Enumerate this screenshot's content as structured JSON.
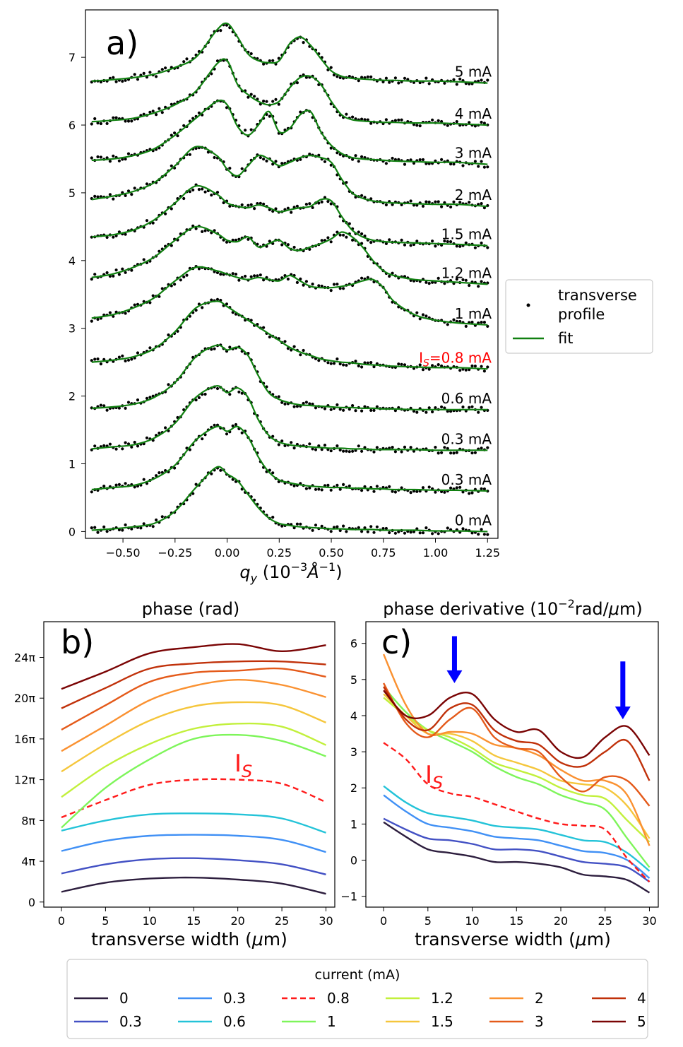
{
  "chart_data": [
    {
      "panel": "a)",
      "type": "line",
      "xlabel": "q_y (10^-3 Å^-1)",
      "xlim": [
        -0.68,
        1.3
      ],
      "ylim": [
        -0.1,
        7.7
      ],
      "xticks": [
        -0.5,
        -0.25,
        0.0,
        0.25,
        0.5,
        0.75,
        1.0,
        1.25
      ],
      "xtick_labels": [
        "−0.50",
        "−0.25",
        "0.00",
        "0.25",
        "0.50",
        "0.75",
        "1.00",
        "1.25"
      ],
      "yticks": [
        0,
        1,
        2,
        3,
        4,
        5,
        6,
        7
      ],
      "legend": [
        "transverse profile",
        "fit"
      ],
      "legend_position": "right",
      "marker_color": "#000000",
      "fit_color": "#118011",
      "highlight_color": "#ff0000",
      "curve_labels": [
        "0 mA",
        "0.3 mA",
        "0.3 mA",
        "0.6 mA",
        "I_S=0.8 mA",
        "1 mA",
        "1.2 mA",
        "1.5 mA",
        "2 mA",
        "3 mA",
        "4 mA",
        "5 mA"
      ],
      "highlight_index": 4,
      "x": [
        -0.65,
        -0.55,
        -0.45,
        -0.35,
        -0.25,
        -0.15,
        -0.05,
        0.0,
        0.05,
        0.1,
        0.15,
        0.2,
        0.25,
        0.3,
        0.35,
        0.4,
        0.45,
        0.5,
        0.55,
        0.6,
        0.65,
        0.7,
        0.75,
        0.8,
        0.9,
        1.0,
        1.1,
        1.25
      ],
      "series": [
        {
          "name": "0 mA",
          "values": [
            0.02,
            0.04,
            0.07,
            0.12,
            0.3,
            0.65,
            0.95,
            0.85,
            0.75,
            0.55,
            0.35,
            0.2,
            0.12,
            0.09,
            0.07,
            0.06,
            0.05,
            0.04,
            0.04,
            0.03,
            0.03,
            0.03,
            0.02,
            0.02,
            0.02,
            0.01,
            0.01,
            0.0
          ]
        },
        {
          "name": "0.3 mA",
          "values": [
            0.62,
            0.65,
            0.68,
            0.78,
            0.98,
            1.35,
            1.55,
            1.48,
            1.55,
            1.4,
            1.1,
            0.88,
            0.76,
            0.72,
            0.69,
            0.67,
            0.66,
            0.65,
            0.65,
            0.64,
            0.64,
            0.63,
            0.63,
            0.62,
            0.62,
            0.61,
            0.61,
            0.6
          ]
        },
        {
          "name": "0.3 mA",
          "values": [
            1.22,
            1.25,
            1.28,
            1.38,
            1.6,
            1.98,
            2.15,
            2.05,
            2.12,
            1.98,
            1.65,
            1.42,
            1.32,
            1.28,
            1.26,
            1.25,
            1.24,
            1.23,
            1.23,
            1.22,
            1.22,
            1.21,
            1.21,
            1.21,
            1.21,
            1.2,
            1.2,
            1.2
          ]
        },
        {
          "name": "0.6 mA",
          "values": [
            1.82,
            1.84,
            1.88,
            1.98,
            2.2,
            2.58,
            2.75,
            2.68,
            2.72,
            2.6,
            2.3,
            2.05,
            1.95,
            1.9,
            1.87,
            1.86,
            1.85,
            1.84,
            1.83,
            1.83,
            1.82,
            1.82,
            1.81,
            1.81,
            1.8,
            1.8,
            1.8,
            1.8
          ]
        },
        {
          "name": "I_S=0.8 mA",
          "values": [
            2.5,
            2.53,
            2.58,
            2.7,
            2.95,
            3.3,
            3.4,
            3.32,
            3.22,
            3.12,
            3.02,
            2.92,
            2.82,
            2.72,
            2.65,
            2.6,
            2.55,
            2.52,
            2.5,
            2.49,
            2.47,
            2.46,
            2.45,
            2.44,
            2.43,
            2.42,
            2.42,
            2.4
          ]
        },
        {
          "name": "1 mA",
          "values": [
            3.15,
            3.2,
            3.3,
            3.45,
            3.7,
            3.9,
            3.85,
            3.8,
            3.75,
            3.72,
            3.75,
            3.72,
            3.7,
            3.78,
            3.7,
            3.62,
            3.6,
            3.6,
            3.62,
            3.65,
            3.7,
            3.72,
            3.6,
            3.4,
            3.2,
            3.12,
            3.08,
            3.05
          ]
        },
        {
          "name": "1.2 mA",
          "values": [
            3.75,
            3.8,
            3.9,
            4.05,
            4.3,
            4.5,
            4.4,
            4.3,
            4.28,
            4.35,
            4.2,
            4.25,
            4.3,
            4.18,
            4.15,
            4.2,
            4.25,
            4.32,
            4.42,
            4.35,
            4.2,
            4.0,
            3.85,
            3.78,
            3.72,
            3.7,
            3.68,
            3.65
          ]
        },
        {
          "name": "1.5 mA",
          "values": [
            4.35,
            4.38,
            4.45,
            4.6,
            4.85,
            5.1,
            4.98,
            4.85,
            4.8,
            4.78,
            4.82,
            4.78,
            4.72,
            4.75,
            4.78,
            4.8,
            4.9,
            4.88,
            4.65,
            4.45,
            4.35,
            4.3,
            4.28,
            4.27,
            4.26,
            4.25,
            4.24,
            4.22
          ]
        },
        {
          "name": "2 mA",
          "values": [
            4.9,
            4.95,
            5.02,
            5.15,
            5.4,
            5.68,
            5.55,
            5.35,
            5.25,
            5.4,
            5.55,
            5.5,
            5.4,
            5.45,
            5.52,
            5.55,
            5.52,
            5.45,
            5.2,
            5.0,
            4.92,
            4.88,
            4.86,
            4.85,
            4.84,
            4.83,
            4.83,
            4.8
          ]
        },
        {
          "name": "3 mA",
          "values": [
            5.48,
            5.5,
            5.55,
            5.65,
            5.85,
            6.1,
            6.35,
            6.3,
            5.98,
            5.85,
            6.0,
            6.2,
            5.9,
            5.95,
            6.15,
            6.2,
            5.9,
            5.7,
            5.58,
            5.52,
            5.5,
            5.49,
            5.48,
            5.47,
            5.46,
            5.45,
            5.45,
            5.42
          ]
        },
        {
          "name": "4 mA",
          "values": [
            6.05,
            6.07,
            6.1,
            6.18,
            6.3,
            6.5,
            6.9,
            6.95,
            6.6,
            6.45,
            6.35,
            6.3,
            6.35,
            6.55,
            6.7,
            6.72,
            6.6,
            6.35,
            6.15,
            6.08,
            6.06,
            6.05,
            6.04,
            6.04,
            6.03,
            6.03,
            6.02,
            6.0
          ]
        },
        {
          "name": "5 mA",
          "values": [
            6.65,
            6.67,
            6.7,
            6.75,
            6.85,
            7.0,
            7.4,
            7.5,
            7.3,
            7.05,
            6.95,
            6.92,
            6.95,
            7.2,
            7.3,
            7.18,
            6.98,
            6.8,
            6.72,
            6.69,
            6.68,
            6.67,
            6.66,
            6.66,
            6.65,
            6.65,
            6.64,
            6.62
          ]
        }
      ]
    },
    {
      "panel": "b)",
      "type": "line",
      "title": "phase (rad)",
      "xlabel": "transverse width (μm)",
      "xlim": [
        -2,
        31
      ],
      "ylim": [
        -0.5,
        27.5
      ],
      "xticks": [
        0,
        5,
        10,
        15,
        20,
        25,
        30
      ],
      "yticks": [
        0,
        4,
        8,
        12,
        16,
        20,
        24
      ],
      "ytick_labels": [
        "0",
        "4π",
        "8π",
        "12π",
        "16π",
        "20π",
        "24π"
      ],
      "annotation": "I_S",
      "x": [
        0,
        5,
        10,
        15,
        20,
        25,
        30
      ],
      "series": [
        {
          "name": "0",
          "color": "#2d1e3e",
          "values": [
            1.0,
            1.9,
            2.3,
            2.4,
            2.2,
            1.8,
            0.8
          ]
        },
        {
          "name": "0.3",
          "color": "#4351c4",
          "values": [
            2.8,
            3.7,
            4.2,
            4.3,
            4.1,
            3.7,
            2.7
          ]
        },
        {
          "name": "0.3",
          "color": "#4090f5",
          "values": [
            5.0,
            6.0,
            6.5,
            6.6,
            6.5,
            6.1,
            4.9
          ]
        },
        {
          "name": "0.6",
          "color": "#23c3d8",
          "values": [
            7.0,
            8.0,
            8.6,
            8.7,
            8.6,
            8.2,
            6.8
          ]
        },
        {
          "name": "0.8",
          "color": "#ff1a1a",
          "dashed": true,
          "values": [
            8.3,
            10.0,
            11.5,
            12.0,
            12.0,
            11.6,
            9.8
          ]
        },
        {
          "name": "1",
          "color": "#7ef55a",
          "values": [
            7.3,
            11.2,
            14.0,
            16.0,
            16.4,
            15.8,
            14.3
          ]
        },
        {
          "name": "1.2",
          "color": "#c2f03c",
          "values": [
            10.3,
            13.3,
            15.5,
            17.0,
            17.5,
            17.2,
            15.4
          ]
        },
        {
          "name": "1.5",
          "color": "#f5c63c",
          "values": [
            12.8,
            15.5,
            17.8,
            19.2,
            19.6,
            19.3,
            17.6
          ]
        },
        {
          "name": "2",
          "color": "#fa9131",
          "values": [
            14.8,
            17.3,
            19.8,
            21.2,
            21.8,
            21.3,
            20.1
          ]
        },
        {
          "name": "3",
          "color": "#e45a1a",
          "values": [
            16.9,
            19.3,
            21.6,
            22.5,
            22.7,
            22.9,
            22.1
          ]
        },
        {
          "name": "4",
          "color": "#c0310a",
          "values": [
            19.0,
            21.0,
            22.9,
            23.4,
            23.6,
            23.6,
            23.3
          ]
        },
        {
          "name": "5",
          "color": "#7a0404",
          "values": [
            20.9,
            22.6,
            24.4,
            25.0,
            25.3,
            24.6,
            25.2
          ]
        }
      ]
    },
    {
      "panel": "c)",
      "type": "line",
      "title": "phase derivative (10^-2 rad/μm)",
      "xlabel": "transverse width (μm)",
      "xlim": [
        -2,
        31
      ],
      "ylim": [
        -1.3,
        6.6
      ],
      "xticks": [
        0,
        5,
        10,
        15,
        20,
        25,
        30
      ],
      "yticks": [
        -1,
        0,
        1,
        2,
        3,
        4,
        5,
        6
      ],
      "annotation": "I_S",
      "arrow_color": "#0000ff",
      "arrows_at_x": [
        8,
        27
      ],
      "x": [
        0,
        2.5,
        5,
        7.5,
        10,
        12.5,
        15,
        17.5,
        20,
        22.5,
        25,
        27.5,
        30
      ],
      "series": [
        {
          "name": "0",
          "color": "#2d1e3e",
          "values": [
            1.05,
            0.65,
            0.3,
            0.2,
            0.1,
            -0.05,
            -0.05,
            -0.1,
            -0.2,
            -0.4,
            -0.45,
            -0.55,
            -0.9
          ]
        },
        {
          "name": "0.3",
          "color": "#4351c4",
          "values": [
            1.15,
            0.85,
            0.6,
            0.55,
            0.45,
            0.3,
            0.3,
            0.25,
            0.1,
            -0.05,
            -0.1,
            -0.2,
            -0.6
          ]
        },
        {
          "name": "0.3",
          "color": "#4090f5",
          "values": [
            1.8,
            1.35,
            1.0,
            0.9,
            0.8,
            0.65,
            0.6,
            0.55,
            0.4,
            0.25,
            0.2,
            0.0,
            -0.5
          ]
        },
        {
          "name": "0.6",
          "color": "#23c3d8",
          "values": [
            2.05,
            1.6,
            1.3,
            1.2,
            1.1,
            0.95,
            0.9,
            0.85,
            0.7,
            0.55,
            0.5,
            0.2,
            -0.3
          ]
        },
        {
          "name": "0.8",
          "color": "#ff1a1a",
          "dashed": true,
          "values": [
            3.25,
            2.8,
            2.1,
            1.85,
            1.75,
            1.55,
            1.35,
            1.15,
            1.0,
            0.95,
            0.85,
            0.05,
            -0.6
          ]
        },
        {
          "name": "1",
          "color": "#7ef55a",
          "values": [
            4.8,
            4.1,
            3.6,
            3.3,
            3.0,
            2.6,
            2.3,
            2.1,
            1.8,
            1.6,
            1.4,
            0.6,
            -0.2
          ]
        },
        {
          "name": "1.2",
          "color": "#c2f03c",
          "values": [
            4.5,
            4.0,
            3.6,
            3.4,
            3.1,
            2.7,
            2.5,
            2.3,
            2.0,
            1.8,
            1.7,
            1.1,
            0.5
          ]
        },
        {
          "name": "1.5",
          "color": "#f5c63c",
          "values": [
            4.6,
            4.0,
            3.5,
            3.5,
            3.3,
            2.9,
            2.7,
            2.5,
            2.2,
            2.1,
            2.0,
            1.5,
            0.6
          ]
        },
        {
          "name": "2",
          "color": "#fa9131",
          "values": [
            5.7,
            4.3,
            3.5,
            3.55,
            3.5,
            3.2,
            3.1,
            2.9,
            2.5,
            2.2,
            2.2,
            1.8,
            0.4
          ]
        },
        {
          "name": "3",
          "color": "#e45a1a",
          "values": [
            4.9,
            3.8,
            3.4,
            3.9,
            4.2,
            3.4,
            3.1,
            3.0,
            2.3,
            1.9,
            2.3,
            2.2,
            1.5
          ]
        },
        {
          "name": "4",
          "color": "#c0310a",
          "values": [
            4.8,
            3.9,
            3.6,
            4.2,
            4.3,
            3.6,
            3.3,
            3.2,
            2.7,
            2.6,
            3.0,
            3.3,
            2.2
          ]
        },
        {
          "name": "5",
          "color": "#7a0404",
          "values": [
            4.7,
            4.0,
            4.0,
            4.5,
            4.6,
            3.9,
            3.55,
            3.6,
            3.0,
            2.85,
            3.4,
            3.7,
            2.9
          ]
        }
      ]
    }
  ],
  "shared_legend": {
    "title": "current (mA)",
    "position": "bottom",
    "entries": [
      "0",
      "0.3",
      "0.3",
      "0.6",
      "0.8",
      "1",
      "1.2",
      "1.5",
      "2",
      "3",
      "4",
      "5"
    ]
  }
}
